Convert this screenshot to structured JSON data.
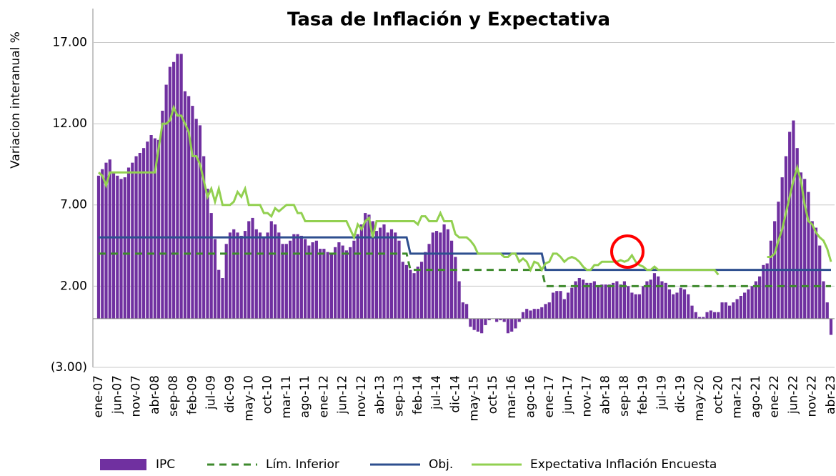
{
  "chart_data": {
    "type": "bar",
    "title": "Tasa de Inflación y Expectativa",
    "y_label": "Variacion interanual %",
    "ylim": [
      -3,
      19
    ],
    "yticks": [
      {
        "value": -3,
        "label": "(3.00)"
      },
      {
        "value": 2,
        "label": "2.00"
      },
      {
        "value": 7,
        "label": "7.00"
      },
      {
        "value": 12,
        "label": "12.00"
      },
      {
        "value": 17,
        "label": "17.00"
      }
    ],
    "grid": true,
    "categories": [
      "ene-07",
      null,
      null,
      null,
      null,
      "jun-07",
      null,
      null,
      null,
      null,
      "nov-07",
      null,
      null,
      null,
      null,
      "abr-08",
      null,
      null,
      null,
      null,
      "sep-08",
      null,
      null,
      null,
      null,
      "feb-09",
      null,
      null,
      null,
      null,
      "jul-09",
      null,
      null,
      null,
      null,
      "dic-09",
      null,
      null,
      null,
      null,
      "may-10",
      null,
      null,
      null,
      null,
      "oct-10",
      null,
      null,
      null,
      null,
      "mar-11",
      null,
      null,
      null,
      null,
      "ago-11",
      null,
      null,
      null,
      null,
      "ene-12",
      null,
      null,
      null,
      null,
      "jun-12",
      null,
      null,
      null,
      null,
      "nov-12",
      null,
      null,
      null,
      null,
      "abr-13",
      null,
      null,
      null,
      null,
      "sep-13",
      null,
      null,
      null,
      null,
      "feb-14",
      null,
      null,
      null,
      null,
      "jul-14",
      null,
      null,
      null,
      null,
      "dic-14",
      null,
      null,
      null,
      null,
      "may-15",
      null,
      null,
      null,
      null,
      "oct-15",
      null,
      null,
      null,
      null,
      "mar-16",
      null,
      null,
      null,
      null,
      "ago-16",
      null,
      null,
      null,
      null,
      "ene-17",
      null,
      null,
      null,
      null,
      "jun-17",
      null,
      null,
      null,
      null,
      "nov-17",
      null,
      null,
      null,
      null,
      "abr-18",
      null,
      null,
      null,
      null,
      "sep-18",
      null,
      null,
      null,
      null,
      "feb-19",
      null,
      null,
      null,
      null,
      "jul-19",
      null,
      null,
      null,
      null,
      "dic-19",
      null,
      null,
      null,
      null,
      "may-20",
      null,
      null,
      null,
      null,
      "oct-20",
      null,
      null,
      null,
      null,
      "mar-21",
      null,
      null,
      null,
      null,
      "ago-21",
      null,
      null,
      null,
      null,
      "ene-22",
      null,
      null,
      null,
      null,
      "jun-22",
      null,
      null,
      null,
      null,
      "nov-22",
      null,
      null,
      null,
      null,
      "abr-23"
    ],
    "series": [
      {
        "name": "IPC",
        "type": "bar",
        "color": "#7030a0",
        "values": [
          8.8,
          9.2,
          9.6,
          9.8,
          9.0,
          8.8,
          8.6,
          8.7,
          9.3,
          9.6,
          10.0,
          10.2,
          10.5,
          10.9,
          11.3,
          11.1,
          11.0,
          12.8,
          14.4,
          15.5,
          15.8,
          16.3,
          16.3,
          14.0,
          13.7,
          13.1,
          12.3,
          11.9,
          10.0,
          8.0,
          6.5,
          4.9,
          3.0,
          2.5,
          4.6,
          5.3,
          5.5,
          5.3,
          5.1,
          5.4,
          6.0,
          6.2,
          5.5,
          5.3,
          5.0,
          5.3,
          6.0,
          5.8,
          5.3,
          4.6,
          4.6,
          4.8,
          5.2,
          5.2,
          5.1,
          4.9,
          4.5,
          4.7,
          4.8,
          4.3,
          4.3,
          4.1,
          4.0,
          4.4,
          4.7,
          4.5,
          4.2,
          4.4,
          4.8,
          5.2,
          5.8,
          6.5,
          6.4,
          6.0,
          5.4,
          5.6,
          5.8,
          5.3,
          5.5,
          5.3,
          4.8,
          3.5,
          3.3,
          3.0,
          2.8,
          3.2,
          3.5,
          4.1,
          4.6,
          5.3,
          5.4,
          5.3,
          5.8,
          5.5,
          4.8,
          3.8,
          2.3,
          1.0,
          0.9,
          -0.5,
          -0.7,
          -0.8,
          -0.9,
          -0.4,
          -0.1,
          0.0,
          -0.2,
          -0.1,
          -0.2,
          -0.9,
          -0.8,
          -0.6,
          -0.2,
          0.4,
          0.6,
          0.5,
          0.6,
          0.6,
          0.7,
          0.9,
          1.0,
          1.6,
          1.7,
          1.7,
          1.2,
          1.6,
          1.9,
          2.3,
          2.5,
          2.4,
          2.2,
          2.2,
          2.3,
          2.0,
          2.1,
          2.1,
          2.1,
          2.2,
          2.3,
          2.1,
          2.3,
          2.0,
          1.6,
          1.5,
          1.5,
          2.0,
          2.3,
          2.4,
          2.8,
          2.6,
          2.3,
          2.2,
          1.8,
          1.5,
          1.6,
          1.9,
          1.8,
          1.5,
          0.8,
          0.4,
          0.1,
          0.1,
          0.4,
          0.5,
          0.4,
          0.4,
          1.0,
          1.0,
          0.8,
          1.0,
          1.2,
          1.4,
          1.6,
          1.8,
          2.0,
          2.3,
          2.6,
          3.3,
          3.4,
          4.8,
          6.0,
          7.2,
          8.7,
          10.0,
          11.5,
          12.2,
          10.5,
          9.0,
          8.6,
          7.8,
          6.0,
          5.6,
          4.5,
          2.3,
          1.0,
          -1.0
        ]
      },
      {
        "name": "Lím. Inferior",
        "type": "line",
        "dash": true,
        "color": "#3e8a2d",
        "values": [
          4,
          4,
          4,
          4,
          4,
          4,
          4,
          4,
          4,
          4,
          4,
          4,
          4,
          4,
          4,
          4,
          4,
          4,
          4,
          4,
          4,
          4,
          4,
          4,
          4,
          4,
          4,
          4,
          4,
          4,
          4,
          4,
          4,
          4,
          4,
          4,
          4,
          4,
          4,
          4,
          4,
          4,
          4,
          4,
          4,
          4,
          4,
          4,
          4,
          4,
          4,
          4,
          4,
          4,
          4,
          4,
          4,
          4,
          4,
          4,
          4,
          4,
          4,
          4,
          4,
          4,
          4,
          4,
          4,
          4,
          4,
          4,
          4,
          4,
          4,
          4,
          4,
          4,
          4,
          4,
          4,
          4,
          4,
          3,
          3,
          3,
          3,
          3,
          3,
          3,
          3,
          3,
          3,
          3,
          3,
          3,
          3,
          3,
          3,
          3,
          3,
          3,
          3,
          3,
          3,
          3,
          3,
          3,
          3,
          3,
          3,
          3,
          3,
          3,
          3,
          3,
          3,
          3,
          3,
          2,
          2,
          2,
          2,
          2,
          2,
          2,
          2,
          2,
          2,
          2,
          2,
          2,
          2,
          2,
          2,
          2,
          2,
          2,
          2,
          2,
          2,
          2,
          2,
          2,
          2,
          2,
          2,
          2,
          2,
          2,
          2,
          2,
          2,
          2,
          2,
          2,
          2,
          2,
          2,
          2,
          2,
          2,
          2,
          2,
          2,
          2,
          2,
          2,
          2,
          2,
          2,
          2,
          2,
          2,
          2,
          2,
          2,
          2,
          2,
          2,
          2,
          2,
          2,
          2,
          2,
          2,
          2,
          2,
          2,
          2,
          2,
          2,
          2,
          2,
          2,
          2
        ]
      },
      {
        "name": "Obj.",
        "type": "line",
        "color": "#2e4f8f",
        "values": [
          5,
          5,
          5,
          5,
          5,
          5,
          5,
          5,
          5,
          5,
          5,
          5,
          5,
          5,
          5,
          5,
          5,
          5,
          5,
          5,
          5,
          5,
          5,
          5,
          5,
          5,
          5,
          5,
          5,
          5,
          5,
          5,
          5,
          5,
          5,
          5,
          5,
          5,
          5,
          5,
          5,
          5,
          5,
          5,
          5,
          5,
          5,
          5,
          5,
          5,
          5,
          5,
          5,
          5,
          5,
          5,
          5,
          5,
          5,
          5,
          5,
          5,
          5,
          5,
          5,
          5,
          5,
          5,
          5,
          5,
          5,
          5,
          5,
          5,
          5,
          5,
          5,
          5,
          5,
          5,
          5,
          5,
          5,
          4,
          4,
          4,
          4,
          4,
          4,
          4,
          4,
          4,
          4,
          4,
          4,
          4,
          4,
          4,
          4,
          4,
          4,
          4,
          4,
          4,
          4,
          4,
          4,
          4,
          4,
          4,
          4,
          4,
          4,
          4,
          4,
          4,
          4,
          4,
          4,
          3,
          3,
          3,
          3,
          3,
          3,
          3,
          3,
          3,
          3,
          3,
          3,
          3,
          3,
          3,
          3,
          3,
          3,
          3,
          3,
          3,
          3,
          3,
          3,
          3,
          3,
          3,
          3,
          3,
          3,
          3,
          3,
          3,
          3,
          3,
          3,
          3,
          3,
          3,
          3,
          3,
          3,
          3,
          3,
          3,
          3,
          3,
          3,
          3,
          3,
          3,
          3,
          3,
          3,
          3,
          3,
          3,
          3,
          3,
          3,
          3,
          3,
          3,
          3,
          3,
          3,
          3,
          3,
          3,
          3,
          3,
          3,
          3,
          3,
          3,
          3,
          3
        ]
      },
      {
        "name": "Expectativa Inflación Encuesta",
        "type": "line",
        "color": "#92d050",
        "values": [
          9.0,
          8.8,
          8.2,
          9.0,
          9.0,
          9.0,
          9.0,
          9.0,
          9.0,
          9.0,
          9.0,
          9.0,
          9.0,
          9.0,
          9.0,
          9.0,
          10.5,
          12.0,
          12.0,
          12.2,
          13.0,
          12.5,
          12.5,
          12.0,
          11.5,
          10.0,
          10.0,
          9.5,
          8.5,
          7.5,
          8.0,
          7.2,
          8.0,
          7.0,
          7.0,
          7.0,
          7.2,
          7.8,
          7.5,
          8.0,
          7.0,
          7.0,
          7.0,
          7.0,
          6.5,
          6.5,
          6.3,
          6.8,
          6.6,
          6.8,
          7.0,
          7.0,
          7.0,
          6.5,
          6.5,
          6.0,
          6.0,
          6.0,
          6.0,
          6.0,
          6.0,
          6.0,
          6.0,
          6.0,
          6.0,
          6.0,
          6.0,
          5.5,
          5.0,
          5.8,
          5.5,
          6.0,
          6.2,
          5.0,
          6.0,
          6.0,
          6.0,
          6.0,
          6.0,
          6.0,
          6.0,
          6.0,
          6.0,
          6.0,
          6.0,
          5.8,
          6.3,
          6.3,
          6.0,
          6.0,
          6.0,
          6.5,
          6.0,
          6.0,
          6.0,
          5.2,
          5.0,
          5.0,
          5.0,
          4.8,
          4.5,
          4.0,
          4.0,
          4.0,
          4.0,
          4.0,
          4.0,
          4.0,
          3.8,
          3.8,
          4.0,
          4.0,
          3.5,
          3.7,
          3.5,
          3.0,
          3.5,
          3.4,
          3.0,
          3.4,
          3.5,
          4.0,
          4.0,
          3.8,
          3.5,
          3.7,
          3.8,
          3.7,
          3.5,
          3.2,
          3.0,
          3.0,
          3.3,
          3.3,
          3.5,
          3.5,
          3.5,
          3.5,
          3.5,
          3.6,
          3.5,
          3.6,
          3.9,
          3.5,
          3.3,
          3.2,
          3.0,
          3.0,
          3.2,
          3.0,
          3.0,
          3.0,
          3.0,
          3.0,
          3.0,
          3.0,
          3.0,
          3.0,
          3.0,
          3.0,
          3.0,
          3.0,
          3.0,
          3.0,
          3.0,
          2.7,
          null,
          null,
          null,
          null,
          null,
          null,
          null,
          null,
          null,
          null,
          null,
          null,
          3.8,
          3.8,
          4.0,
          4.8,
          5.5,
          6.5,
          7.5,
          8.5,
          9.3,
          8.5,
          7.0,
          6.0,
          5.8,
          5.3,
          5.0,
          4.8,
          4.3,
          3.5
        ]
      }
    ]
  }
}
